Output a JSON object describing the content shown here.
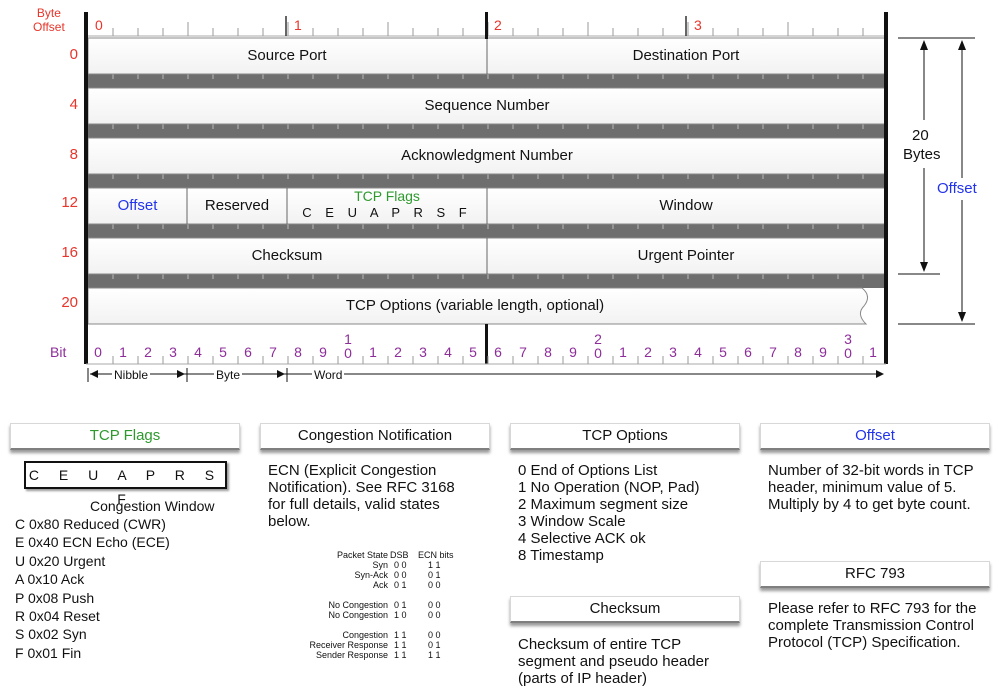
{
  "header": {
    "byte_offset_label": [
      "Byte",
      "Offset"
    ],
    "byte_columns": [
      "0",
      "1",
      "2",
      "3"
    ],
    "offsets": [
      "0",
      "4",
      "8",
      "12",
      "16",
      "20"
    ],
    "fields": {
      "source_port": "Source Port",
      "destination_port": "Destination Port",
      "sequence_number": "Sequence Number",
      "ack_number": "Acknowledgment Number",
      "offset": "Offset",
      "reserved": "Reserved",
      "tcp_flags": "TCP Flags",
      "flag_letters": "C E U A P R S F",
      "window": "Window",
      "checksum": "Checksum",
      "urgent_pointer": "Urgent Pointer",
      "options": "TCP Options (variable length, optional)"
    },
    "bit_label": "Bit",
    "bits": [
      "0",
      "1",
      "2",
      "3",
      "4",
      "5",
      "6",
      "7",
      "8",
      "9",
      "1|0",
      "1",
      "2",
      "3",
      "4",
      "5",
      "6",
      "7",
      "8",
      "9",
      "2|0",
      "1",
      "2",
      "3",
      "4",
      "5",
      "6",
      "7",
      "8",
      "9",
      "3|0",
      "1"
    ],
    "scale": {
      "nibble": "Nibble",
      "byte": "Byte",
      "word": "Word"
    },
    "size_bracket": {
      "value": "20",
      "unit": "Bytes",
      "offset": "Offset"
    }
  },
  "panels": {
    "tcp_flags": {
      "title": "TCP Flags",
      "flags_box": "C E U A P R S F",
      "subtitle": "Congestion Window",
      "items": [
        "C 0x80 Reduced (CWR)",
        "E 0x40 ECN Echo (ECE)",
        "U 0x20 Urgent",
        "A 0x10 Ack",
        "P 0x08 Push",
        "R 0x04 Reset",
        "S 0x02 Syn",
        "F 0x01 Fin"
      ]
    },
    "congestion": {
      "title": "Congestion Notification",
      "text": "ECN (Explicit Congestion Notification). See RFC 3168 for full details, valid states below.",
      "headers": [
        "Packet State",
        "DSB",
        "ECN bits"
      ],
      "rows": [
        [
          "Syn",
          "0 0",
          "1 1"
        ],
        [
          "Syn-Ack",
          "0 0",
          "0 1"
        ],
        [
          "Ack",
          "0 1",
          "0 0"
        ],
        [
          "",
          "",
          ""
        ],
        [
          "No Congestion",
          "0 1",
          "0 0"
        ],
        [
          "No Congestion",
          "1 0",
          "0 0"
        ],
        [
          "",
          "",
          ""
        ],
        [
          "Congestion",
          "1 1",
          "0 0"
        ],
        [
          "Receiver Response",
          "1 1",
          "0 1"
        ],
        [
          "Sender Response",
          "1 1",
          "1 1"
        ]
      ]
    },
    "tcp_options": {
      "title": "TCP Options",
      "items": [
        "0 End of Options List",
        "1 No Operation (NOP, Pad)",
        "2 Maximum segment size",
        "3 Window Scale",
        "4 Selective ACK ok",
        "8 Timestamp"
      ]
    },
    "checksum": {
      "title": "Checksum",
      "text": "Checksum of entire TCP segment and pseudo header (parts of IP header)"
    },
    "offset": {
      "title": "Offset",
      "text": "Number of 32-bit words in TCP header, minimum value of 5. Multiply by 4 to get byte count."
    },
    "rfc": {
      "title": "RFC 793",
      "text": "Please refer to RFC 793 for the complete Transmission Control Protocol (TCP) Specification."
    }
  },
  "colors": {
    "red": "#e8352b",
    "purple": "#8e2d9a",
    "green": "#2e9a2e",
    "blue": "#2233ee"
  }
}
